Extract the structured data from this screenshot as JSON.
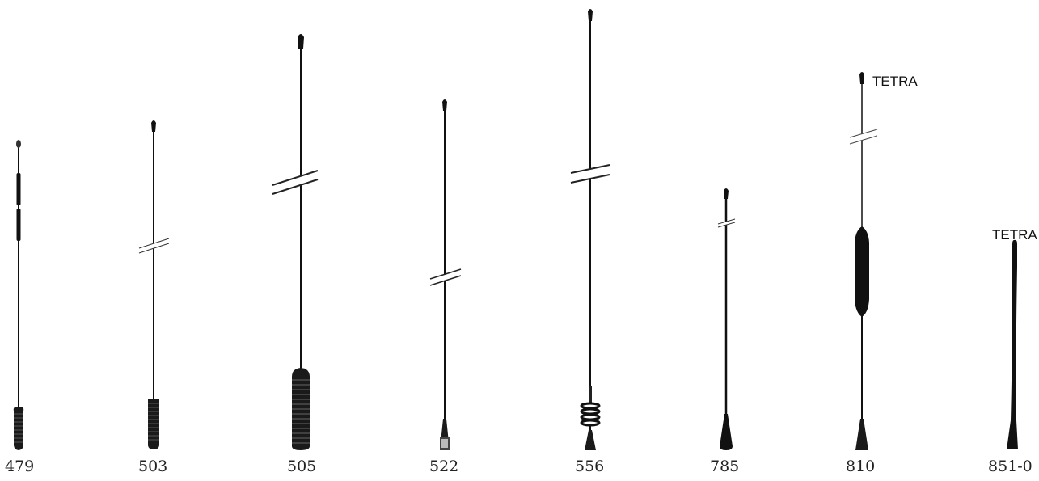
{
  "antennas": [
    {
      "model": "479"
    },
    {
      "model": "503"
    },
    {
      "model": "505"
    },
    {
      "model": "522"
    },
    {
      "model": "556"
    },
    {
      "model": "785"
    },
    {
      "model": "810",
      "band_label": "TETRA"
    },
    {
      "model": "851-0",
      "band_label": "TETRA"
    }
  ],
  "colors": {
    "antenna": "#111111",
    "background": "#ffffff"
  }
}
